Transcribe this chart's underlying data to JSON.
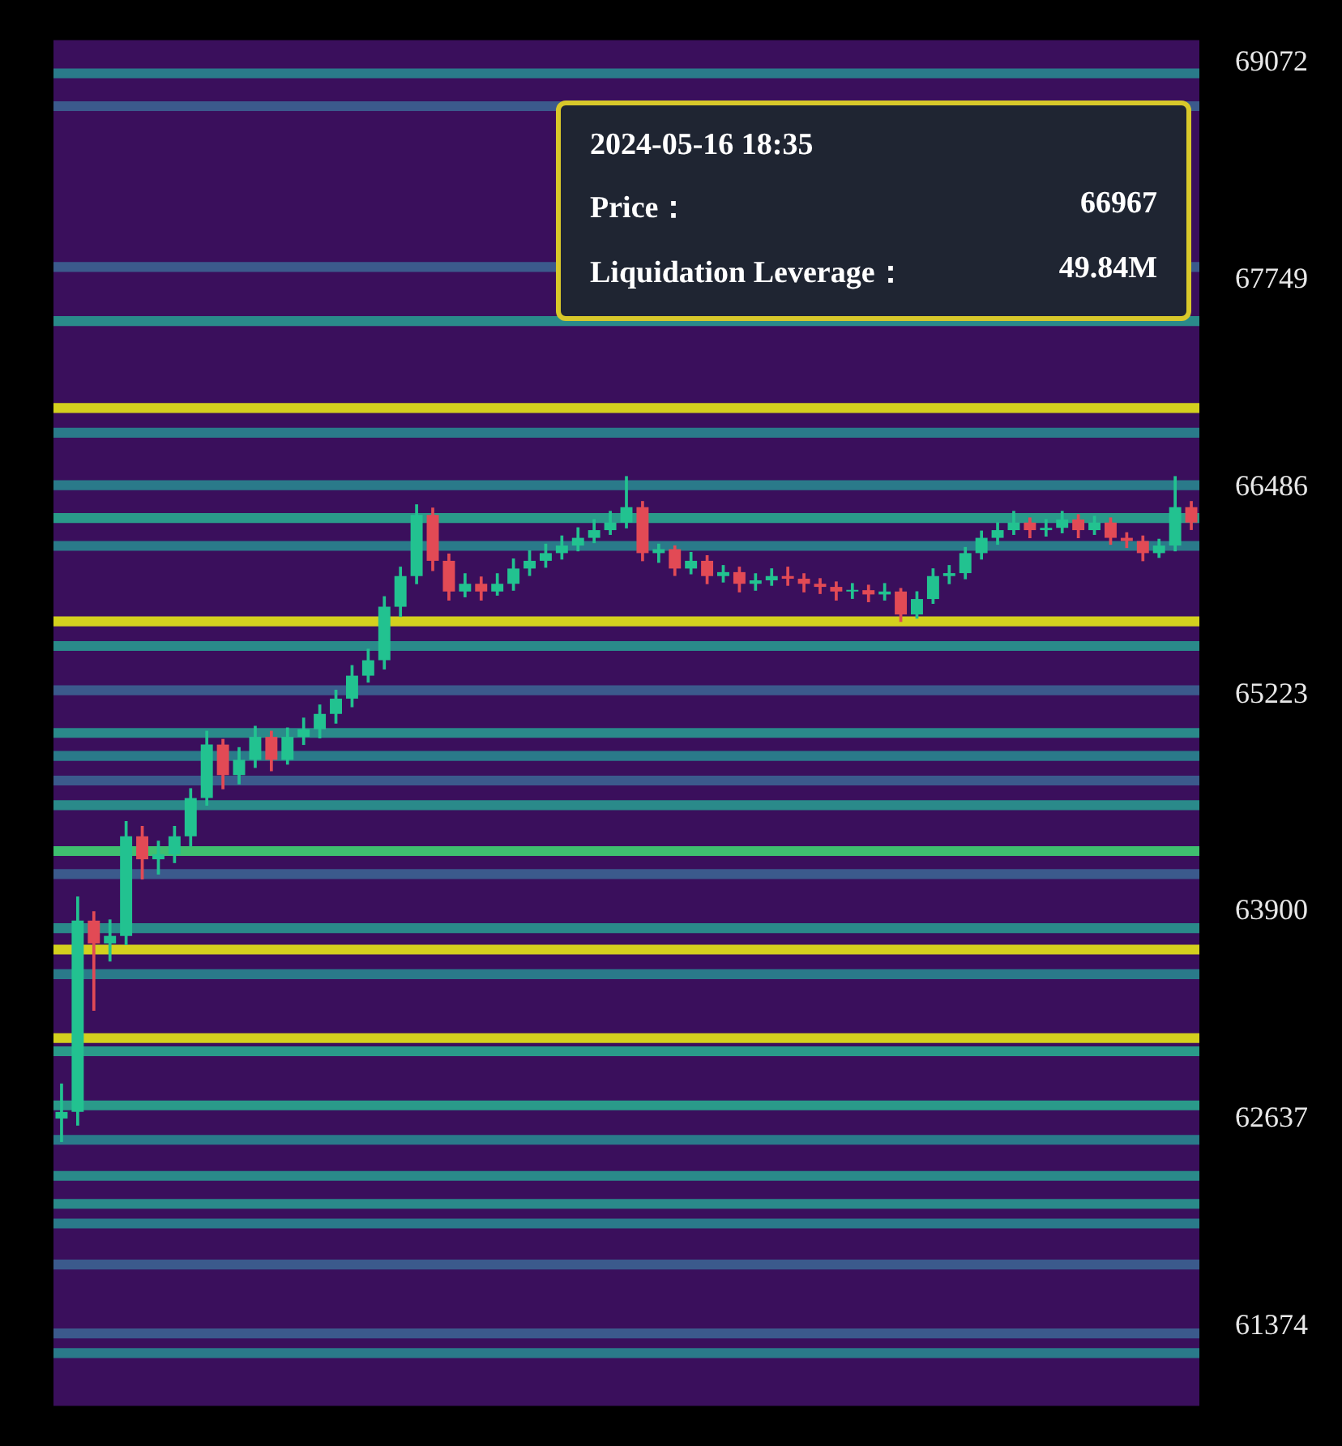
{
  "chart_data": {
    "type": "candlestick",
    "categories": [
      null,
      null,
      null,
      null,
      null,
      null,
      null,
      null,
      null,
      null,
      null,
      null,
      null,
      null,
      null,
      null,
      null,
      null,
      null,
      null,
      null,
      null,
      null,
      null,
      null,
      null,
      null,
      null,
      null,
      null,
      null,
      null,
      null,
      null,
      null,
      null,
      null,
      null,
      null,
      null,
      null,
      null,
      null,
      null,
      null,
      null,
      null,
      null,
      null,
      null,
      null,
      null,
      null,
      null,
      null,
      null,
      null,
      null,
      null,
      null,
      null,
      null,
      null,
      null,
      null,
      null,
      null,
      null,
      null,
      null,
      null
    ],
    "ohlc": [
      [
        62640,
        62850,
        62500,
        62680
      ],
      [
        62680,
        63990,
        62600,
        63846
      ],
      [
        63846,
        63900,
        63300,
        63707
      ],
      [
        63707,
        63850,
        63600,
        63753
      ],
      [
        63753,
        64450,
        63700,
        64360
      ],
      [
        64360,
        64420,
        64100,
        64220
      ],
      [
        64220,
        64330,
        64130,
        64250
      ],
      [
        64250,
        64420,
        64200,
        64360
      ],
      [
        64360,
        64650,
        64300,
        64593
      ],
      [
        64593,
        65000,
        64550,
        64919
      ],
      [
        64919,
        64950,
        64650,
        64733
      ],
      [
        64733,
        64900,
        64680,
        64826
      ],
      [
        64826,
        65030,
        64780,
        64966
      ],
      [
        64966,
        65000,
        64760,
        64826
      ],
      [
        64826,
        65020,
        64800,
        64966
      ],
      [
        64966,
        65080,
        64920,
        65013
      ],
      [
        65013,
        65160,
        64960,
        65106
      ],
      [
        65106,
        65250,
        65050,
        65199
      ],
      [
        65199,
        65400,
        65150,
        65339
      ],
      [
        65339,
        65500,
        65300,
        65433
      ],
      [
        65433,
        65820,
        65380,
        65759
      ],
      [
        65759,
        66000,
        65700,
        65946
      ],
      [
        65946,
        66380,
        65900,
        66319
      ],
      [
        66319,
        66360,
        65980,
        66039
      ],
      [
        66039,
        66080,
        65800,
        65852
      ],
      [
        65852,
        65960,
        65820,
        65899
      ],
      [
        65899,
        65940,
        65800,
        65852
      ],
      [
        65852,
        65960,
        65830,
        65899
      ],
      [
        65899,
        66050,
        65860,
        65992
      ],
      [
        65992,
        66100,
        65950,
        66039
      ],
      [
        66039,
        66140,
        66000,
        66086
      ],
      [
        66086,
        66190,
        66050,
        66132
      ],
      [
        66132,
        66240,
        66100,
        66179
      ],
      [
        66179,
        66290,
        66150,
        66226
      ],
      [
        66226,
        66340,
        66200,
        66272
      ],
      [
        66272,
        66552,
        66240,
        66366
      ],
      [
        66366,
        66400,
        66040,
        66086
      ],
      [
        66086,
        66140,
        66030,
        66110
      ],
      [
        66110,
        66130,
        65950,
        65992
      ],
      [
        65992,
        66090,
        65960,
        66039
      ],
      [
        66039,
        66070,
        65900,
        65946
      ],
      [
        65946,
        66010,
        65910,
        65970
      ],
      [
        65970,
        66000,
        65850,
        65899
      ],
      [
        65899,
        65960,
        65860,
        65920
      ],
      [
        65920,
        65990,
        65890,
        65946
      ],
      [
        65946,
        66000,
        65890,
        65930
      ],
      [
        65930,
        65960,
        65850,
        65899
      ],
      [
        65899,
        65930,
        65840,
        65880
      ],
      [
        65880,
        65910,
        65800,
        65852
      ],
      [
        65852,
        65900,
        65810,
        65860
      ],
      [
        65860,
        65890,
        65790,
        65834
      ],
      [
        65834,
        65900,
        65800,
        65852
      ],
      [
        65852,
        65870,
        65670,
        65712
      ],
      [
        65712,
        65850,
        65690,
        65806
      ],
      [
        65806,
        65990,
        65780,
        65946
      ],
      [
        65946,
        66010,
        65900,
        65964
      ],
      [
        65964,
        66120,
        65930,
        66086
      ],
      [
        66086,
        66220,
        66050,
        66179
      ],
      [
        66179,
        66270,
        66140,
        66226
      ],
      [
        66226,
        66340,
        66200,
        66272
      ],
      [
        66272,
        66300,
        66180,
        66226
      ],
      [
        66226,
        66290,
        66190,
        66240
      ],
      [
        66240,
        66340,
        66210,
        66291
      ],
      [
        66291,
        66320,
        66180,
        66226
      ],
      [
        66226,
        66310,
        66200,
        66272
      ],
      [
        66272,
        66300,
        66140,
        66179
      ],
      [
        66179,
        66210,
        66120,
        66160
      ],
      [
        66160,
        66190,
        66040,
        66086
      ],
      [
        66086,
        66170,
        66060,
        66132
      ],
      [
        66132,
        66552,
        66100,
        66366
      ],
      [
        66366,
        66400,
        66230,
        66272
      ]
    ],
    "ylim": [
      60889,
      69212
    ],
    "yticks": [
      69072,
      67749,
      66486,
      65223,
      63900,
      62637,
      61374
    ],
    "tick_labels": "y",
    "bands": [
      {
        "axis": "y",
        "from": 68980,
        "to": 69040,
        "color": "#2a7a8a"
      },
      {
        "axis": "y",
        "from": 68780,
        "to": 68840,
        "color": "#3b5a8c"
      },
      {
        "axis": "y",
        "from": 67800,
        "to": 67860,
        "color": "#3b5a8c"
      },
      {
        "axis": "y",
        "from": 67470,
        "to": 67530,
        "color": "#2a8a8a"
      },
      {
        "axis": "y",
        "from": 66940,
        "to": 67000,
        "color": "#d4d01e"
      },
      {
        "axis": "y",
        "from": 66790,
        "to": 66850,
        "color": "#2a7a8a"
      },
      {
        "axis": "y",
        "from": 66470,
        "to": 66530,
        "color": "#2a7a8a"
      },
      {
        "axis": "y",
        "from": 66270,
        "to": 66330,
        "color": "#2a9a8a"
      },
      {
        "axis": "y",
        "from": 66100,
        "to": 66160,
        "color": "#2a7a8a"
      },
      {
        "axis": "y",
        "from": 65640,
        "to": 65700,
        "color": "#d4d01e"
      },
      {
        "axis": "y",
        "from": 65490,
        "to": 65550,
        "color": "#2a8a8a"
      },
      {
        "axis": "y",
        "from": 65220,
        "to": 65280,
        "color": "#3b5a8c"
      },
      {
        "axis": "y",
        "from": 64960,
        "to": 65020,
        "color": "#2a8a8a"
      },
      {
        "axis": "y",
        "from": 64820,
        "to": 64880,
        "color": "#2a7a8a"
      },
      {
        "axis": "y",
        "from": 64670,
        "to": 64730,
        "color": "#3b5a8c"
      },
      {
        "axis": "y",
        "from": 64520,
        "to": 64580,
        "color": "#2a8a8a"
      },
      {
        "axis": "y",
        "from": 64240,
        "to": 64300,
        "color": "#3fbf6f"
      },
      {
        "axis": "y",
        "from": 64100,
        "to": 64160,
        "color": "#3b5a8c"
      },
      {
        "axis": "y",
        "from": 63770,
        "to": 63830,
        "color": "#2a8a8a"
      },
      {
        "axis": "y",
        "from": 63640,
        "to": 63700,
        "color": "#d4d01e"
      },
      {
        "axis": "y",
        "from": 63490,
        "to": 63550,
        "color": "#2a7a8a"
      },
      {
        "axis": "y",
        "from": 63100,
        "to": 63160,
        "color": "#d4d01e"
      },
      {
        "axis": "y",
        "from": 63020,
        "to": 63080,
        "color": "#2a9a8a"
      },
      {
        "axis": "y",
        "from": 62690,
        "to": 62750,
        "color": "#2a9a8a"
      },
      {
        "axis": "y",
        "from": 62480,
        "to": 62540,
        "color": "#2a7a8a"
      },
      {
        "axis": "y",
        "from": 62260,
        "to": 62320,
        "color": "#2a8a8a"
      },
      {
        "axis": "y",
        "from": 62090,
        "to": 62150,
        "color": "#2a8a8a"
      },
      {
        "axis": "y",
        "from": 61970,
        "to": 62030,
        "color": "#2a7a8a"
      },
      {
        "axis": "y",
        "from": 61720,
        "to": 61780,
        "color": "#3b5a8c"
      },
      {
        "axis": "y",
        "from": 61300,
        "to": 61360,
        "color": "#3b5a8c"
      },
      {
        "axis": "y",
        "from": 61180,
        "to": 61240,
        "color": "#2a7a8a"
      }
    ],
    "annotations": [
      "2024-05-16 18:35",
      "Price：",
      "66967",
      "Liquidation Leverage：",
      "49.84M"
    ]
  }
}
